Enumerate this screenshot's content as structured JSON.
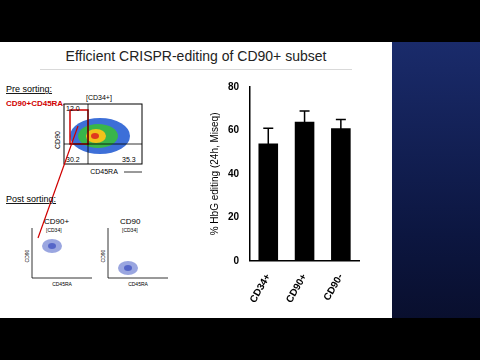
{
  "chart_data": {
    "type": "bar",
    "title": "Efficient CRISPR-editing of CD90+ subset",
    "categories": [
      "CD34+",
      "CD90+",
      "CD90-"
    ],
    "values": [
      54,
      64,
      61
    ],
    "error": [
      7,
      5,
      4
    ],
    "color": "#000000",
    "y_label": "% HbG editing (24h, Miseq)",
    "ylim": [
      0,
      80
    ],
    "yticks": [
      0,
      20,
      40,
      60,
      80
    ],
    "grid": false
  },
  "flow_panel": {
    "pre_heading": "Pre sorting:",
    "gate_label": "CD90+CD45RA-",
    "parent": "[CD34+]",
    "x_axis": "CD45RA",
    "y_axis": "CD90",
    "gate_percent": "12.0",
    "low_left_percent": "30.2",
    "right_percent": "35.3",
    "post_heading": "Post sorting:",
    "post_plots": [
      "CD90+",
      "CD90"
    ],
    "post_parent": "[CD34]"
  }
}
